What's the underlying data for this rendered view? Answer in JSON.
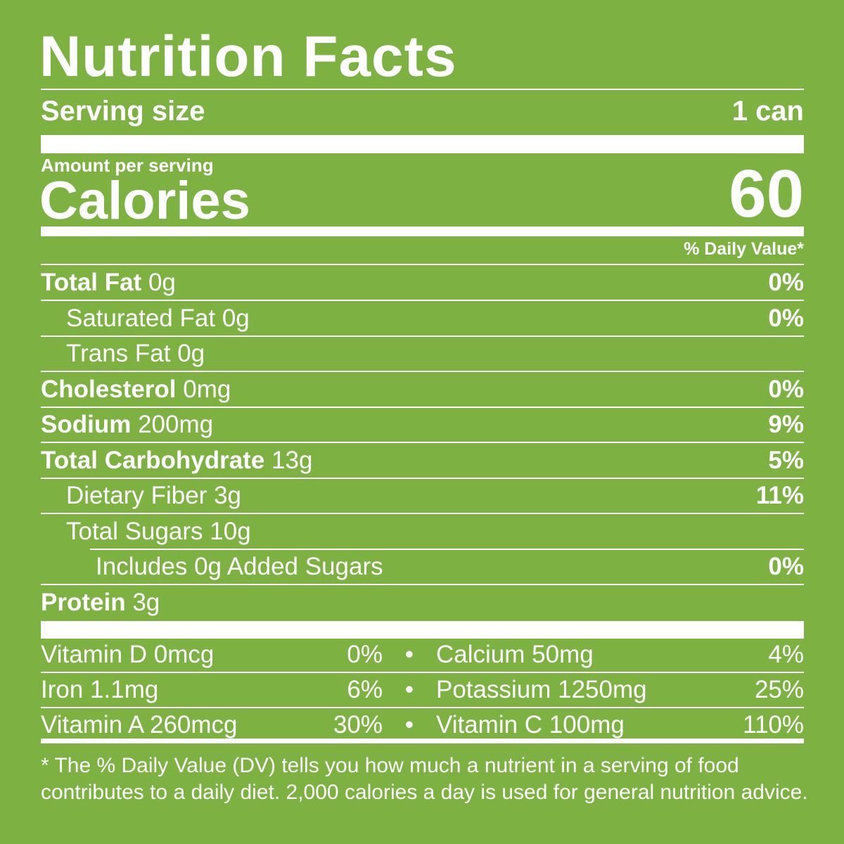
{
  "title": "Nutrition Facts",
  "serving": {
    "label": "Serving size",
    "value": "1 can"
  },
  "amount_label": "Amount per serving",
  "calories": {
    "label": "Calories",
    "value": "60"
  },
  "dv_header": "% Daily Value*",
  "nutrients": [
    {
      "name": "Total Fat",
      "amount": "0g",
      "dv": "0%",
      "bold": true,
      "indent": 0
    },
    {
      "name": "Saturated Fat",
      "amount": "0g",
      "dv": "0%",
      "bold": false,
      "indent": 1
    },
    {
      "name": "Trans Fat",
      "amount": "0g",
      "dv": "",
      "bold": false,
      "indent": 1
    },
    {
      "name": "Cholesterol",
      "amount": "0mg",
      "dv": "0%",
      "bold": true,
      "indent": 0
    },
    {
      "name": "Sodium",
      "amount": "200mg",
      "dv": "9%",
      "bold": true,
      "indent": 0
    },
    {
      "name": "Total Carbohydrate",
      "amount": "13g",
      "dv": "5%",
      "bold": true,
      "indent": 0
    },
    {
      "name": "Dietary Fiber",
      "amount": "3g",
      "dv": "11%",
      "bold": false,
      "indent": 1
    },
    {
      "name": "Total Sugars",
      "amount": "10g",
      "dv": "",
      "bold": false,
      "indent": 1
    },
    {
      "name": "Includes 0g Added Sugars",
      "amount": "",
      "dv": "0%",
      "bold": false,
      "indent": 2
    },
    {
      "name": "Protein",
      "amount": "3g",
      "dv": "",
      "bold": true,
      "indent": 0
    }
  ],
  "vitamins": [
    [
      {
        "name": "Vitamin D 0mcg",
        "dv": "0%"
      },
      {
        "name": "Calcium 50mg",
        "dv": "4%"
      }
    ],
    [
      {
        "name": "Iron 1.1mg",
        "dv": "6%"
      },
      {
        "name": "Potassium 1250mg",
        "dv": "25%"
      }
    ],
    [
      {
        "name": "Vitamin A 260mcg",
        "dv": "30%"
      },
      {
        "name": "Vitamin C 100mg",
        "dv": "110%"
      }
    ]
  ],
  "bullet": "•",
  "footnote": [
    "* The % Daily Value (DV) tells you how much a nutrient in a serving of food",
    "contributes to a daily diet. 2,000 calories a day is used for general nutrition advice."
  ],
  "colors": {
    "background": "#7db242",
    "text": "#ffffff"
  }
}
